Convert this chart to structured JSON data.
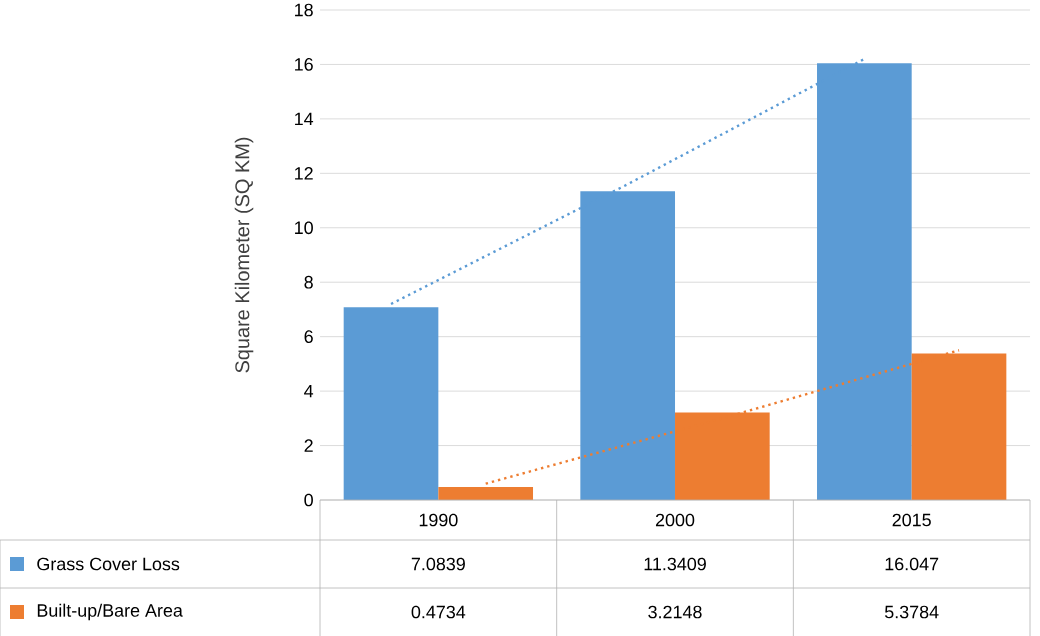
{
  "chart_data": {
    "type": "bar",
    "ylabel": "Square Kilometer (SQ KM)",
    "categories": [
      "1990",
      "2000",
      "2015"
    ],
    "series": [
      {
        "name": "Grass Cover Loss",
        "color": "#5b9bd5",
        "values": [
          7.0839,
          11.3409,
          16.047
        ],
        "value_labels": [
          "7.0839",
          "11.3409",
          "16.047"
        ]
      },
      {
        "name": "Built-up/Bare Area",
        "color": "#ed7d31",
        "values": [
          0.4734,
          3.2148,
          5.3784
        ],
        "value_labels": [
          "0.4734",
          "3.2148",
          "5.3784"
        ]
      },
      {
        "type": "line",
        "color": "#5b9bd5",
        "line_style": "dotted",
        "values": [
          7.2,
          11.6,
          16.2
        ]
      },
      {
        "type": "line",
        "color": "#ed7d31",
        "line_style": "dotted",
        "values": [
          0.6,
          3.0,
          5.5
        ]
      }
    ],
    "ylim": [
      0,
      18
    ],
    "yticks": [
      0,
      2,
      4,
      6,
      8,
      10,
      12,
      14,
      16,
      18
    ],
    "grid": "y",
    "legend": "bottom",
    "tick_labels": "y"
  }
}
